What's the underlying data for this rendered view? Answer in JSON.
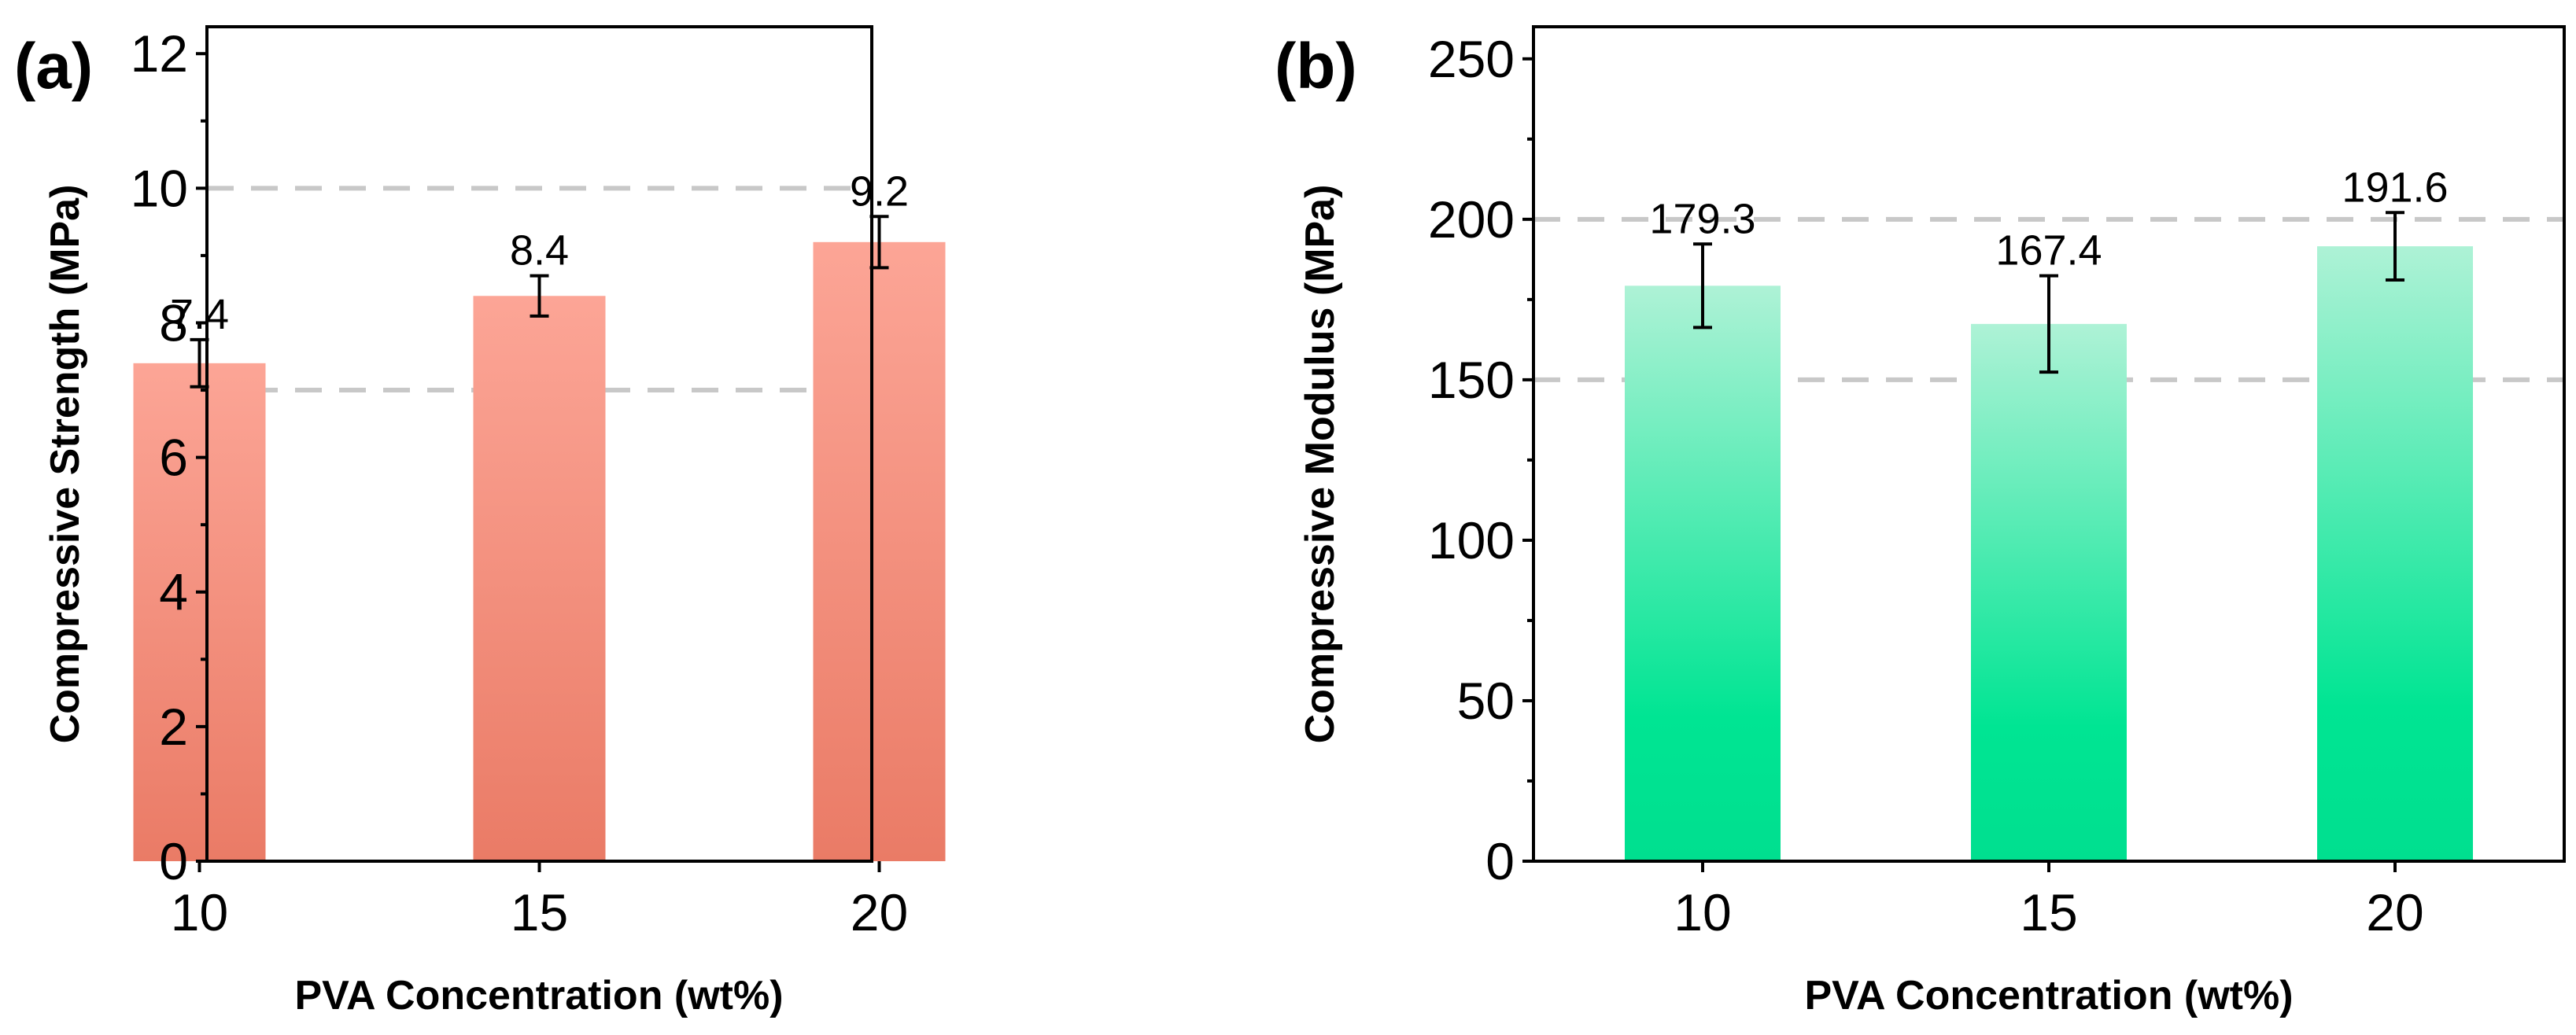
{
  "chart_data": [
    {
      "panel": "(a)",
      "type": "bar",
      "categories": [
        "10",
        "15",
        "20"
      ],
      "values": [
        7.4,
        8.4,
        9.2
      ],
      "errors": [
        0.35,
        0.3,
        0.38
      ],
      "value_labels": [
        "7.4",
        "8.4",
        "9.2"
      ],
      "xlabel": "PVA Concentration (wt%)",
      "ylabel": "Compressive Strength (MPa)",
      "ylim": [
        0,
        12.4
      ],
      "yticks": [
        0,
        2,
        4,
        6,
        8,
        10,
        12
      ],
      "ytick_labels": [
        "0",
        "2",
        "4",
        "6",
        "8",
        "10",
        "12"
      ],
      "reference_lines": [
        7,
        10
      ],
      "bar_color_top": "#fca596",
      "bar_color_bottom": "#ea7b66"
    },
    {
      "panel": "(b)",
      "type": "bar",
      "categories": [
        "10",
        "15",
        "20"
      ],
      "values": [
        179.3,
        167.4,
        191.6
      ],
      "errors": [
        13,
        15,
        10.5
      ],
      "value_labels": [
        "179.3",
        "167.4",
        "191.6"
      ],
      "xlabel": "PVA Concentration (wt%)",
      "ylabel": "Compressive Modulus (MPa)",
      "ylim": [
        0,
        260
      ],
      "yticks": [
        0,
        50,
        100,
        150,
        200,
        250
      ],
      "ytick_labels": [
        "0",
        "50",
        "100",
        "150",
        "200",
        "250"
      ],
      "reference_lines": [
        150,
        200
      ],
      "bar_color_top": "#aef2d6",
      "bar_color_bottom": "#00df8f"
    }
  ]
}
